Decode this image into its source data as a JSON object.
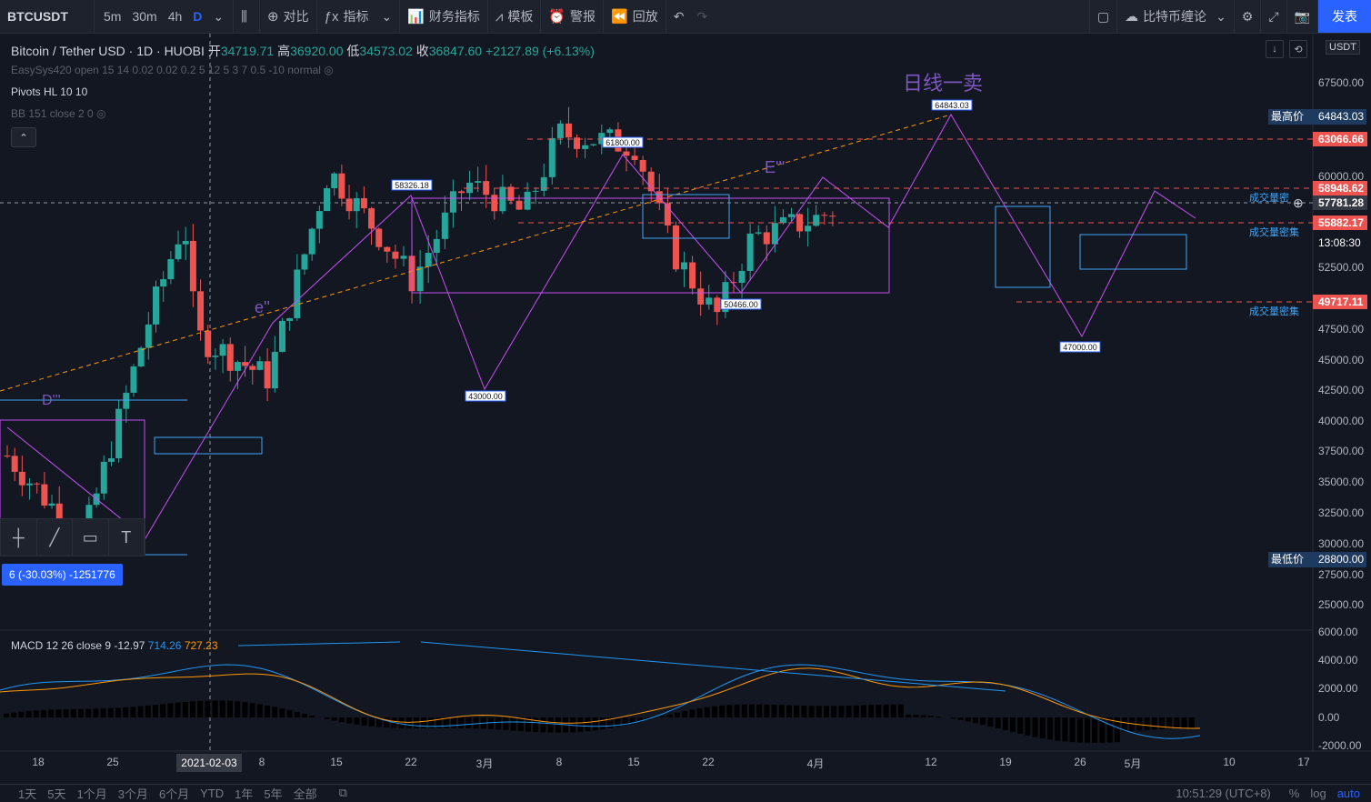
{
  "toolbar": {
    "symbol": "BTCUSDT",
    "timeframes": [
      "5m",
      "30m",
      "4h",
      "D"
    ],
    "active_timeframe": "D",
    "compare": "对比",
    "indicators": "指标",
    "financials": "财务指标",
    "templates": "模板",
    "alert": "警报",
    "replay": "回放",
    "layout_name": "比特币缠论",
    "publish": "发表"
  },
  "legend": {
    "title": "Bitcoin / Tether USD · 1D · HUOBI",
    "open_label": "开",
    "open": "34719.71",
    "high_label": "高",
    "high": "36920.00",
    "low_label": "低",
    "low": "34573.02",
    "close_label": "收",
    "close": "36847.60",
    "change": "+2127.89 (+6.13%)",
    "ind1": "EasySys420 open 15 14 0.02 0.02 0.2 5 12 5 3 7 0.5 -10 normal",
    "ind2": "Pivots HL 10 10",
    "ind3": "BB 151 close 2 0",
    "macd_name": "MACD 12 26 close 9",
    "macd_hist": "-12.97",
    "macd_line": "714.26",
    "macd_signal": "727.23"
  },
  "currency": "USDT",
  "measure_text": "6 (-30.03%) -1251776",
  "annotations": {
    "sell": "日线一卖",
    "wave_e": "e''",
    "wave_E": "E'''",
    "wave_D": "D'''"
  },
  "pivots": [
    "64843.03",
    "61800.00",
    "58326.18",
    "50466.00",
    "43000.00",
    "47000.00"
  ],
  "volume_labels": [
    "成交量密",
    "成交量密集",
    "成交量密集"
  ],
  "price_axis": {
    "ticks": [
      "67500.00",
      "60000.00",
      "52500.00",
      "47500.00",
      "45000.00",
      "42500.00",
      "40000.00",
      "37500.00",
      "35000.00",
      "32500.00",
      "30000.00",
      "27500.00",
      "25000.00"
    ],
    "highest_label": "最高价",
    "highest": "64843.03",
    "lowest_label": "最低价",
    "lowest": "28800.00",
    "red_levels": [
      "63066.66",
      "58948.62",
      "55882.17",
      "49717.11"
    ],
    "current": "57781.28",
    "countdown": "13:08:30",
    "macd_ticks": [
      "6000.00",
      "4000.00",
      "2000.00",
      "0.00",
      "-2000.00"
    ]
  },
  "x_axis": {
    "labels": [
      "18",
      "25",
      "8",
      "15",
      "22",
      "3月",
      "8",
      "15",
      "22",
      "4月",
      "12",
      "19",
      "26",
      "5月",
      "10",
      "17"
    ],
    "cursor_date": "2021-02-03"
  },
  "bottom": {
    "ranges": [
      "1天",
      "5天",
      "1个月",
      "3个月",
      "6个月",
      "YTD",
      "1年",
      "5年",
      "全部"
    ],
    "time": "10:51:29 (UTC+8)",
    "percent": "%",
    "log": "log",
    "auto": "auto"
  },
  "colors": {
    "up": "#26a69a",
    "down": "#ef5350",
    "accent": "#2962ff"
  }
}
